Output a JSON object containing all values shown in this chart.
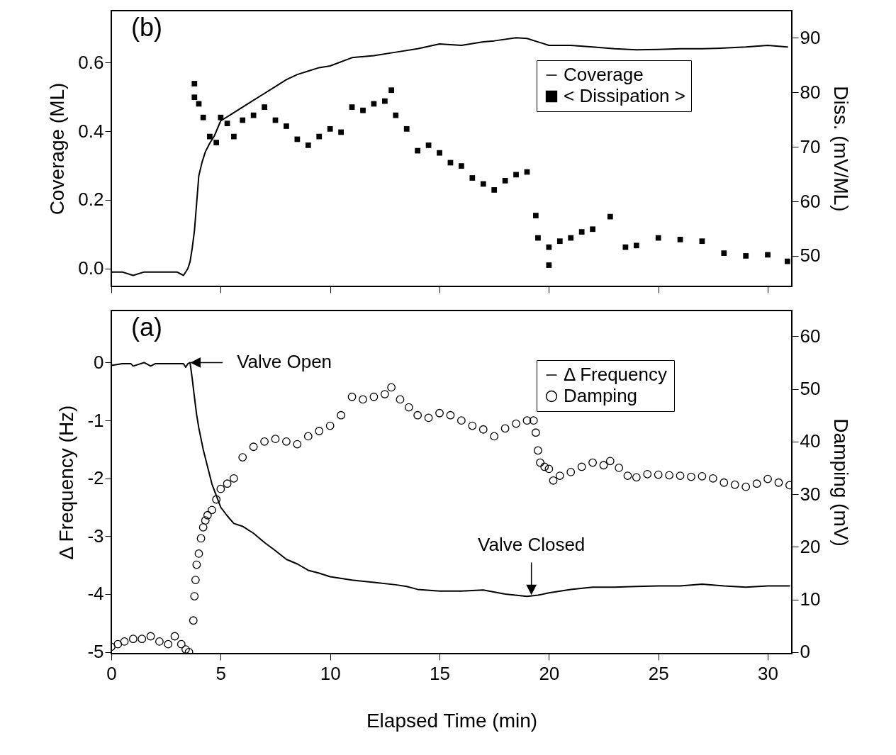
{
  "chart_data": [
    {
      "type": "line",
      "xlim": [
        0,
        31.1
      ],
      "xticks": [
        0,
        5,
        10,
        15,
        20,
        25,
        30
      ],
      "tick_labels": "y",
      "ylabel": "Coverage (ML)",
      "y2label": "Diss. (mV/ML)",
      "ylim": [
        -0.052,
        0.751
      ],
      "yticks": [
        {
          "value": 0,
          "label": "0.0"
        },
        {
          "value": 0.2,
          "label": "0.2"
        },
        {
          "value": 0.4,
          "label": "0.4"
        },
        {
          "value": 0.6,
          "label": "0.6"
        }
      ],
      "y2lim": [
        44.4,
        95
      ],
      "y2ticks": [
        50,
        60,
        70,
        80,
        90
      ],
      "legend": "top right",
      "grid": false,
      "annotations": [
        "(b)"
      ],
      "series": [
        {
          "name": "Coverage",
          "color": "#000000",
          "x": [
            0,
            0.5,
            1,
            1.5,
            2,
            2.5,
            3,
            3.3,
            3.5,
            3.6,
            3.7,
            3.8,
            3.9,
            4.0,
            4.15,
            4.3,
            4.5,
            4.7,
            5,
            5.5,
            6,
            6.5,
            7,
            7.5,
            8,
            8.5,
            9,
            9.5,
            10,
            11,
            12,
            13,
            14,
            15,
            16,
            17,
            17.5,
            18.5,
            19,
            19.5,
            20,
            21,
            22,
            23,
            24,
            25,
            26,
            27,
            28,
            29,
            30,
            30.9
          ],
          "values": [
            -0.01,
            -0.01,
            -0.02,
            -0.01,
            -0.01,
            -0.01,
            -0.01,
            -0.02,
            0,
            0.02,
            0.06,
            0.11,
            0.19,
            0.27,
            0.31,
            0.34,
            0.365,
            0.385,
            0.43,
            0.45,
            0.47,
            0.49,
            0.51,
            0.53,
            0.55,
            0.565,
            0.575,
            0.585,
            0.59,
            0.614,
            0.62,
            0.63,
            0.64,
            0.654,
            0.65,
            0.66,
            0.663,
            0.672,
            0.67,
            0.66,
            0.65,
            0.65,
            0.645,
            0.64,
            0.637,
            0.638,
            0.64,
            0.64,
            0.642,
            0.645,
            0.65,
            0.645
          ]
        },
        {
          "name": "< Dissipation >",
          "type": "scatter",
          "marker": "square",
          "axis": "y2",
          "color": "#000000",
          "x": [
            3.8,
            3.8,
            4.0,
            4.2,
            4.5,
            4.8,
            5.0,
            5.3,
            5.6,
            6.0,
            6.5,
            7.0,
            7.5,
            8.0,
            8.5,
            9.0,
            9.5,
            10.0,
            10.5,
            11.0,
            11.5,
            12.0,
            12.5,
            12.8,
            13.0,
            13.5,
            14.0,
            14.5,
            15.0,
            15.5,
            16.0,
            16.5,
            17.0,
            17.5,
            18.0,
            18.5,
            19.0,
            19.4,
            19.5,
            20.0,
            20.0,
            20.5,
            21.0,
            21.5,
            22.0,
            22.8,
            23.5,
            24.0,
            25.0,
            26.0,
            27.0,
            28.0,
            29.0,
            30.0,
            30.9
          ],
          "values": [
            81.6,
            79.1,
            77.9,
            75.4,
            71.9,
            70.8,
            75.4,
            74.3,
            71.9,
            74.9,
            75.8,
            77.3,
            74.9,
            73.8,
            71.4,
            70.3,
            71.9,
            73.3,
            72.7,
            77.3,
            76.7,
            77.9,
            78.4,
            80.4,
            75.8,
            73.3,
            69.3,
            70.3,
            68.9,
            67.1,
            66.5,
            64.3,
            63.2,
            62.1,
            63.8,
            64.9,
            65.4,
            57.4,
            53.3,
            51.6,
            48.3,
            52.7,
            53.3,
            54.4,
            54.9,
            57.2,
            51.6,
            51.9,
            53.3,
            53,
            52.7,
            50.5,
            50,
            50.2,
            49
          ]
        }
      ]
    },
    {
      "type": "line",
      "xlim": [
        0,
        31.1
      ],
      "xticks": [
        0,
        5,
        10,
        15,
        20,
        25,
        30
      ],
      "xlabel": "Elapsed Time (min)",
      "ylabel": "Δ Frequency (Hz)",
      "y2label": "Damping (mV)",
      "ylim": [
        -5.03,
        0.9
      ],
      "yticks": [
        0,
        -1,
        -2,
        -3,
        -4,
        -5
      ],
      "y2lim": [
        -0.3,
        64.9
      ],
      "y2ticks": [
        0,
        10,
        20,
        30,
        40,
        50,
        60
      ],
      "legend": "top right",
      "grid": false,
      "annotations": [
        "(a)",
        {
          "text": "Valve Open",
          "x": 3.6,
          "y": 0
        },
        {
          "text": "Valve Closed",
          "x": 19.2,
          "y": -4.02
        }
      ],
      "series": [
        {
          "name": "Δ Frequency",
          "color": "#000000",
          "x": [
            0,
            0.5,
            0.9,
            1.0,
            1.5,
            1.8,
            2.0,
            2.5,
            3.0,
            3.3,
            3.4,
            3.5,
            3.6,
            3.7,
            3.8,
            3.9,
            4.0,
            4.2,
            4.4,
            4.6,
            4.8,
            5.0,
            5.3,
            5.6,
            6.0,
            6.5,
            7.0,
            7.5,
            8.0,
            8.5,
            9.0,
            9.5,
            10.0,
            11.0,
            12.0,
            13.0,
            13.5,
            14.0,
            15.0,
            16.0,
            17.0,
            18.0,
            19.0,
            19.5,
            20.0,
            21.0,
            22.0,
            23.0,
            24.0,
            25.0,
            26.0,
            27.0,
            28.0,
            29.0,
            30.0,
            31.0
          ],
          "values": [
            -0.05,
            -0.02,
            -0.02,
            -0.06,
            0,
            -0.06,
            -0.02,
            -0.02,
            -0.02,
            -0.02,
            -0.08,
            -0.02,
            0,
            -0.28,
            -0.6,
            -0.9,
            -1.13,
            -1.5,
            -1.8,
            -2.1,
            -2.3,
            -2.5,
            -2.65,
            -2.78,
            -2.83,
            -2.95,
            -3.11,
            -3.25,
            -3.4,
            -3.48,
            -3.59,
            -3.64,
            -3.7,
            -3.76,
            -3.8,
            -3.84,
            -3.87,
            -3.92,
            -3.95,
            -3.95,
            -3.93,
            -4.0,
            -4.04,
            -4.02,
            -3.98,
            -3.92,
            -3.88,
            -3.88,
            -3.87,
            -3.86,
            -3.86,
            -3.83,
            -3.86,
            -3.88,
            -3.86,
            -3.86
          ]
        },
        {
          "name": "Damping",
          "type": "scatter",
          "marker": "circle",
          "axis": "y2",
          "color": "#000000",
          "x": [
            0,
            0.3,
            0.6,
            1.0,
            1.4,
            1.8,
            2.2,
            2.6,
            2.9,
            3.2,
            3.4,
            3.55,
            3.75,
            3.8,
            3.85,
            3.9,
            4.0,
            4.1,
            4.2,
            4.3,
            4.4,
            4.6,
            4.8,
            5.0,
            5.3,
            5.6,
            6.0,
            6.5,
            7.0,
            7.5,
            8.0,
            8.5,
            9.0,
            9.5,
            10.0,
            10.5,
            11.0,
            11.5,
            12.0,
            12.5,
            12.8,
            13.2,
            13.6,
            14.0,
            14.5,
            15.0,
            15.5,
            16.0,
            16.5,
            17.0,
            17.5,
            18.0,
            18.5,
            19.0,
            19.3,
            19.4,
            19.5,
            19.6,
            19.8,
            20.0,
            20.2,
            20.5,
            21.0,
            21.5,
            22.0,
            22.5,
            22.8,
            23.2,
            23.6,
            24.0,
            24.5,
            25.0,
            25.5,
            26.0,
            26.5,
            27.0,
            27.5,
            28.0,
            28.5,
            29.0,
            29.5,
            30.0,
            30.5,
            31.0
          ],
          "values": [
            1,
            1.5,
            2,
            2.5,
            2.5,
            3,
            2,
            1.5,
            3,
            1.5,
            0.5,
            0,
            6,
            10.6,
            13.7,
            16.6,
            18.7,
            21.6,
            23.7,
            25,
            26,
            27,
            29,
            31,
            32,
            33,
            37,
            39,
            40,
            40.5,
            40,
            39.5,
            41,
            42,
            43,
            45,
            48.5,
            48,
            48.5,
            49,
            50.3,
            48,
            46.5,
            45,
            44.5,
            45.4,
            45,
            44,
            43,
            42.3,
            41,
            42.5,
            43.4,
            44,
            44,
            41.7,
            38.3,
            36,
            35.2,
            34.8,
            32.6,
            33.5,
            34.2,
            35.2,
            36,
            35.5,
            36.3,
            35,
            33.5,
            33.2,
            33.8,
            33.7,
            33.6,
            33.5,
            33.3,
            33.4,
            33,
            32.2,
            31.8,
            31.4,
            32,
            32.9,
            32.2,
            31.7
          ]
        }
      ]
    }
  ]
}
